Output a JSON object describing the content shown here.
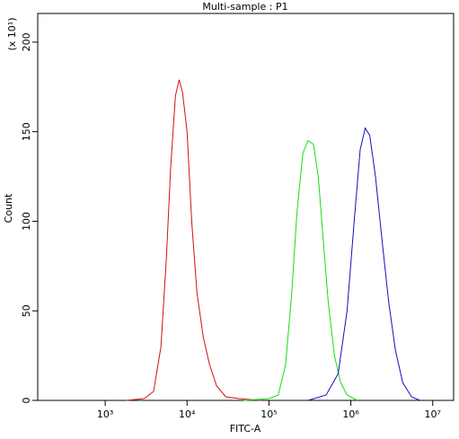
{
  "chart_data": {
    "type": "line",
    "title": "Multi-sample : P1",
    "x_label": "FITC-A",
    "y_label": "Count",
    "y_multiplier": "(x 10¹)",
    "xscale": "log",
    "xlim": [
      150,
      18000000
    ],
    "ylim": [
      0,
      216
    ],
    "xticks": [
      {
        "value": 1000,
        "label": "10³"
      },
      {
        "value": 10000,
        "label": "10⁴"
      },
      {
        "value": 100000,
        "label": "10⁵"
      },
      {
        "value": 1000000,
        "label": "10⁶"
      },
      {
        "value": 10000000,
        "label": "10⁷"
      }
    ],
    "yticks": [
      0,
      50,
      100,
      150,
      200
    ],
    "series": [
      {
        "color": "#d01010",
        "x": [
          1800,
          3000,
          3900,
          4800,
          5600,
          6300,
          7200,
          8000,
          8800,
          10000,
          11400,
          13200,
          15800,
          18800,
          23000,
          29700,
          43000,
          80000
        ],
        "values": [
          0,
          1,
          5,
          30,
          80,
          130,
          170,
          179,
          172,
          150,
          100,
          60,
          35,
          20,
          8,
          2,
          1,
          0
        ]
      },
      {
        "color": "#10e010",
        "x": [
          50000,
          100000,
          130000,
          160000,
          190000,
          220000,
          260000,
          300000,
          350000,
          400000,
          460000,
          530000,
          630000,
          750000,
          900000,
          1200000
        ],
        "values": [
          0,
          1,
          3,
          20,
          60,
          105,
          138,
          145,
          143,
          125,
          90,
          55,
          25,
          10,
          3,
          0
        ]
      },
      {
        "color": "#1010c0",
        "x": [
          300000,
          500000,
          700000,
          900000,
          1100000,
          1300000,
          1500000,
          1700000,
          2000000,
          2400000,
          2900000,
          3500000,
          4300000,
          5500000,
          7000000
        ],
        "values": [
          0,
          3,
          15,
          50,
          100,
          140,
          152,
          148,
          125,
          90,
          55,
          28,
          10,
          2,
          0
        ]
      }
    ]
  }
}
